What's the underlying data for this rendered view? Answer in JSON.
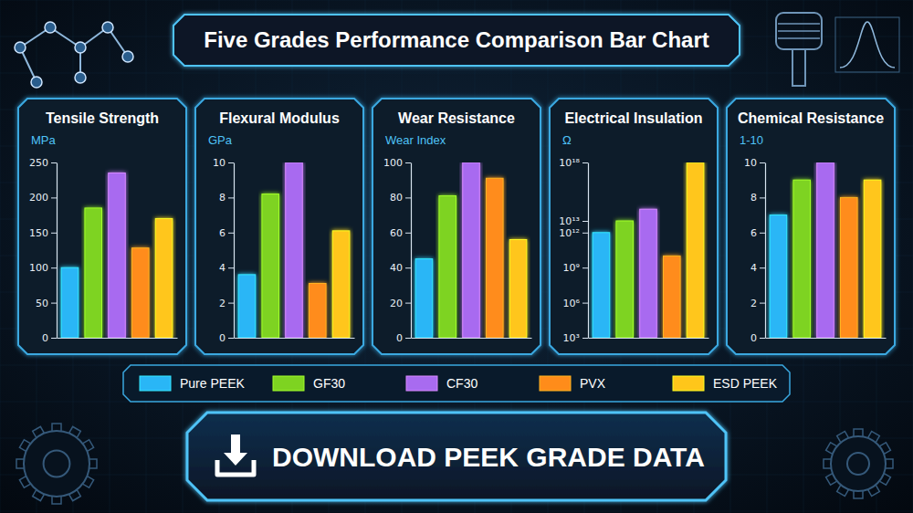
{
  "header": {
    "title": "Five Grades Performance Comparison Bar Chart"
  },
  "chart_data": [
    {
      "type": "bar",
      "title": "Tensile Strength",
      "y_label": "MPa",
      "categories": [
        null,
        null,
        null,
        null,
        null
      ],
      "values": [
        100,
        185,
        235,
        128,
        170
      ],
      "colors": [
        "#29b6f6",
        "#7ed321",
        "#a86bf0",
        "#ff8c1a",
        "#ffc61a"
      ],
      "ylim": [
        0,
        250
      ],
      "yticks": [
        0,
        50,
        100,
        150,
        200,
        250
      ],
      "tick_labels": "y"
    },
    {
      "type": "bar",
      "title": "Flexural Modulus",
      "y_label": "GPa",
      "categories": [
        null,
        null,
        null,
        null,
        null
      ],
      "values": [
        3.6,
        8.2,
        10,
        3.1,
        6.1
      ],
      "colors": [
        "#29b6f6",
        "#7ed321",
        "#a86bf0",
        "#ff8c1a",
        "#ffc61a"
      ],
      "ylim": [
        0,
        10
      ],
      "yticks": [
        0,
        2,
        4,
        6,
        8,
        10
      ],
      "tick_labels": "y"
    },
    {
      "type": "bar",
      "title": "Wear Resistance",
      "y_label": "Wear Index",
      "categories": [
        null,
        null,
        null,
        null,
        null
      ],
      "values": [
        45,
        81,
        100,
        91,
        56
      ],
      "colors": [
        "#29b6f6",
        "#7ed321",
        "#a86bf0",
        "#ff8c1a",
        "#ffc61a"
      ],
      "ylim": [
        0,
        100
      ],
      "yticks": [
        0,
        20,
        40,
        60,
        80,
        100
      ],
      "tick_labels": "y"
    },
    {
      "type": "bar",
      "title": "Electrical Insulation",
      "y_label": "Ω",
      "log": "y",
      "categories": [
        null,
        null,
        null,
        null,
        null
      ],
      "values": [
        1000000000000.0,
        10000000000000.0,
        100000000000000.0,
        10000000000.0,
        1e+18
      ],
      "colors": [
        "#29b6f6",
        "#7ed321",
        "#a86bf0",
        "#ff8c1a",
        "#ffc61a"
      ],
      "ylim": [
        1000,
        1e+18
      ],
      "yticks": [
        {
          "value": 1000,
          "label": "10³"
        },
        {
          "value": 1000000.0,
          "label": "10⁶"
        },
        {
          "value": 1000000000.0,
          "label": "10⁹"
        },
        {
          "value": 1000000000000.0,
          "label": "10¹²"
        },
        {
          "value": 10000000000000.0,
          "label": "10¹³"
        },
        {
          "value": 1e+18,
          "label": "10¹⁸"
        }
      ],
      "tick_labels": "y"
    },
    {
      "type": "bar",
      "title": "Chemical Resistance",
      "y_label": "1-10",
      "categories": [
        null,
        null,
        null,
        null,
        null
      ],
      "values": [
        7,
        9,
        10,
        8,
        9
      ],
      "colors": [
        "#29b6f6",
        "#7ed321",
        "#a86bf0",
        "#ff8c1a",
        "#ffc61a"
      ],
      "ylim": [
        0,
        10
      ],
      "yticks": [
        0,
        2,
        4,
        6,
        8,
        10
      ],
      "tick_labels": "y"
    }
  ],
  "shared_legend": {
    "items": [
      {
        "name": "Pure PEEK",
        "color": "#29b6f6"
      },
      {
        "name": "GF30",
        "color": "#7ed321"
      },
      {
        "name": "CF30",
        "color": "#a86bf0"
      },
      {
        "name": "PVX",
        "color": "#ff8c1a"
      },
      {
        "name": "ESD PEEK",
        "color": "#ffc61a"
      }
    ]
  },
  "button": {
    "label": "DOWNLOAD PEEK GRADE DATA"
  }
}
